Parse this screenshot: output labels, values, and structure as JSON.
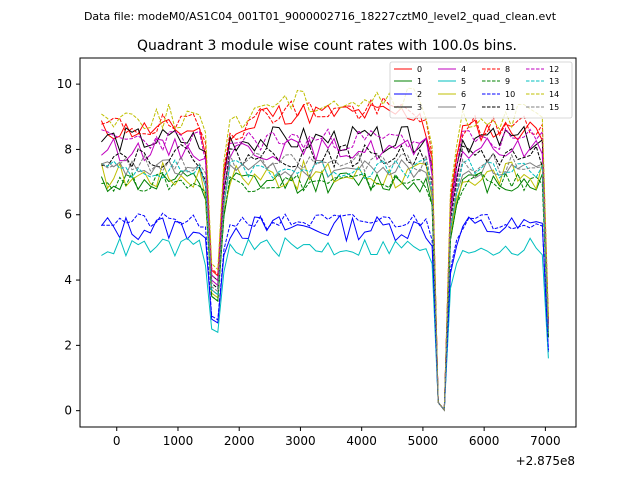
{
  "chart_data": {
    "type": "line",
    "suptitle": "Data file: modeM0/AS1C04_001T01_9000002716_18227cztM0_level2_quad_clean.evt",
    "title": "Quadrant 3 module wise count rates with 100.0s bins.",
    "xlabel": "",
    "ylabel": "",
    "x_offset_label": "+2.875e8",
    "xlim": [
      -600,
      7500
    ],
    "ylim": [
      -0.5,
      10.8
    ],
    "x_ticks": [
      0,
      1000,
      2000,
      3000,
      4000,
      5000,
      6000,
      7000
    ],
    "y_ticks": [
      0,
      2,
      4,
      6,
      8,
      10
    ],
    "x_tick_labels": [
      "0",
      "1000",
      "2000",
      "3000",
      "4000",
      "5000",
      "6000",
      "7000"
    ],
    "y_tick_labels": [
      "0",
      "2",
      "4",
      "6",
      "8",
      "10"
    ],
    "grid": false,
    "legend_position": "upper-right",
    "legend_columns": 4,
    "x_start": -250,
    "x_step": 100,
    "series": [
      {
        "name": "0",
        "color": "#ff0000",
        "dash": "solid",
        "base": 8.6,
        "amp": 0.35,
        "seed": 11
      },
      {
        "name": "1",
        "color": "#008000",
        "dash": "solid",
        "base": 7.0,
        "amp": 0.35,
        "seed": 12
      },
      {
        "name": "2",
        "color": "#0000ff",
        "dash": "solid",
        "base": 5.6,
        "amp": 0.4,
        "seed": 13
      },
      {
        "name": "3",
        "color": "#000000",
        "dash": "solid",
        "base": 8.3,
        "amp": 0.4,
        "seed": 14
      },
      {
        "name": "4",
        "color": "#bf00bf",
        "dash": "solid",
        "base": 8.0,
        "amp": 0.35,
        "seed": 15
      },
      {
        "name": "5",
        "color": "#00bfbf",
        "dash": "solid",
        "base": 5.0,
        "amp": 0.3,
        "seed": 16
      },
      {
        "name": "6",
        "color": "#bfbf00",
        "dash": "solid",
        "base": 7.2,
        "amp": 0.45,
        "seed": 17
      },
      {
        "name": "7",
        "color": "#808080",
        "dash": "solid",
        "base": 7.4,
        "amp": 0.3,
        "seed": 18
      },
      {
        "name": "8",
        "color": "#ff0000",
        "dash": "dashed",
        "base": 8.7,
        "amp": 0.4,
        "seed": 19
      },
      {
        "name": "9",
        "color": "#008000",
        "dash": "dashed",
        "base": 7.0,
        "amp": 0.3,
        "seed": 20
      },
      {
        "name": "10",
        "color": "#0000ff",
        "dash": "dashed",
        "base": 5.8,
        "amp": 0.25,
        "seed": 21
      },
      {
        "name": "11",
        "color": "#000000",
        "dash": "dashed",
        "base": 7.8,
        "amp": 0.35,
        "seed": 22
      },
      {
        "name": "12",
        "color": "#bf00bf",
        "dash": "dashed",
        "base": 8.3,
        "amp": 0.35,
        "seed": 23
      },
      {
        "name": "13",
        "color": "#00bfbf",
        "dash": "dashed",
        "base": 7.4,
        "amp": 0.3,
        "seed": 24
      },
      {
        "name": "14",
        "color": "#bfbf00",
        "dash": "dashed",
        "base": 9.0,
        "amp": 0.4,
        "seed": 25
      },
      {
        "name": "15",
        "color": "#808080",
        "dash": "dashed",
        "base": 7.6,
        "amp": 0.3,
        "seed": 26
      }
    ],
    "notes": "Count rates per module vs time (100 s bins). Common dips near x≈1600 and x≈5500 (SAA/gap), rates ~0 between x≈5200 and x≈5400, and a drop at the end near x≈7100."
  }
}
